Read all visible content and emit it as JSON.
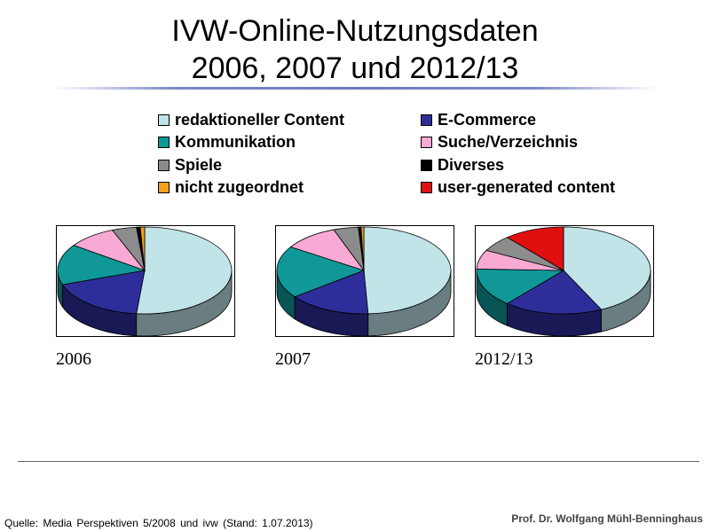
{
  "header": {
    "title_line1": "IVW-Online-Nutzungsdaten",
    "title_line2": "2006, 2007 und 2012/13"
  },
  "chart_data": {
    "type": "pie",
    "categories": [
      "redaktioneller Content",
      "E-Commerce",
      "Kommunikation",
      "Suche/Verzeichnis",
      "Spiele",
      "Diverses",
      "nicht zugeordnet",
      "user-generated content"
    ],
    "colors": [
      "#c0e4e8",
      "#2e2e9a",
      "#109898",
      "#f8aad4",
      "#8c8c8c",
      "#000000",
      "#f4a018",
      "#e01010"
    ],
    "legend_position": "top",
    "series": [
      {
        "name": "2006",
        "values": [
          51,
          18,
          15,
          9,
          4.5,
          0.7,
          0.8,
          0
        ]
      },
      {
        "name": "2007",
        "values": [
          48,
          15,
          19,
          10,
          4.5,
          0.5,
          0.5,
          0
        ]
      },
      {
        "name": "2012/13",
        "values": [
          42,
          18,
          14,
          7,
          6,
          0,
          0,
          11
        ]
      }
    ]
  },
  "footer": {
    "source": "Quelle: Media Perspektiven 5/2008 und ivw (Stand: 1.07.2013)",
    "author": "Prof. Dr. Wolfgang Mühl-Benninghaus"
  }
}
